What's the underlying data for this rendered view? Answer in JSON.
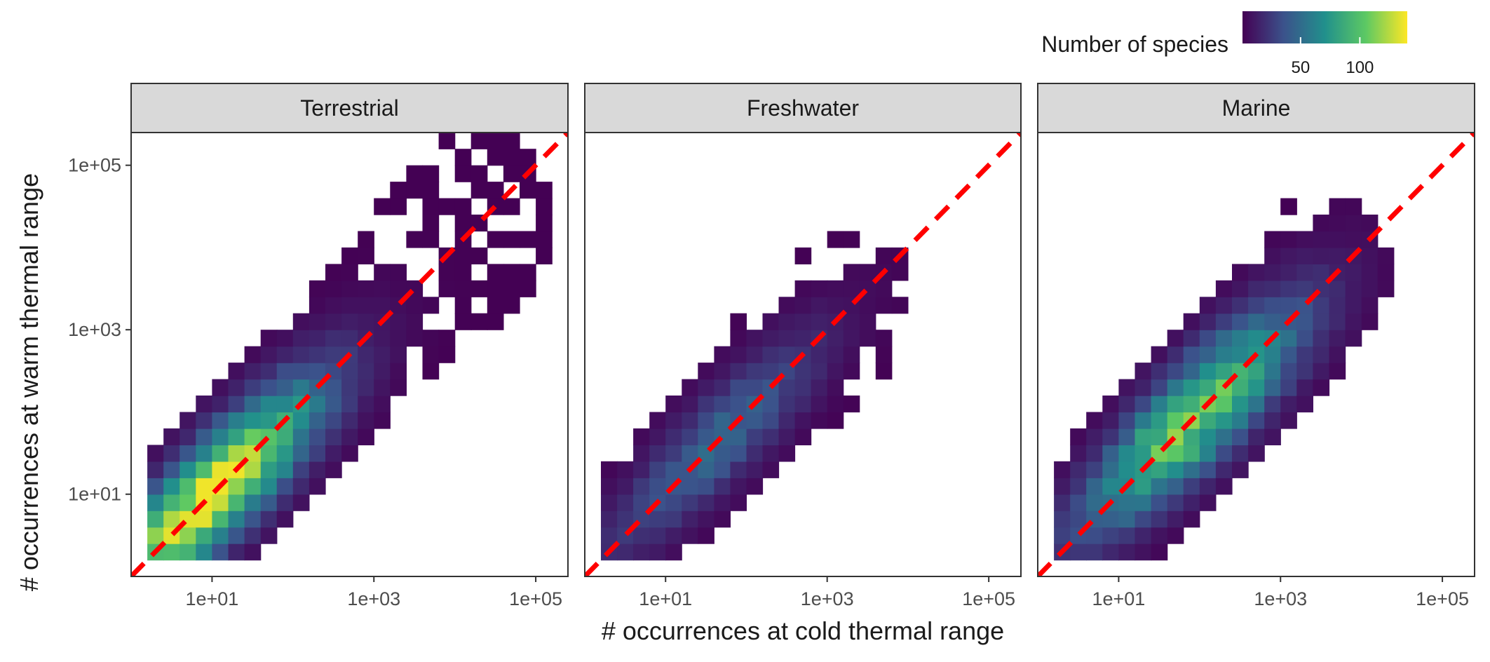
{
  "chart_data": {
    "type": "heatmap",
    "xlabel": "# occurrences at cold thermal range",
    "ylabel": "# occurrences at warm thermal range",
    "x_scale": "log10",
    "y_scale": "log10",
    "xlim": [
      1,
      250000
    ],
    "ylim": [
      1,
      250000
    ],
    "x_ticks": [
      "1e+01",
      "1e+03",
      "1e+05"
    ],
    "y_ticks": [
      "1e+01",
      "1e+03",
      "1e+05"
    ],
    "reference_line": {
      "slope": 1,
      "intercept": 0,
      "color": "#ff0000",
      "style": "dashed"
    },
    "legend": {
      "title": "Number of species",
      "ticks": [
        "50",
        "100"
      ],
      "range": [
        1,
        140
      ],
      "palette": [
        "#440154",
        "#3b528b",
        "#21908c",
        "#5dc963",
        "#fde725"
      ],
      "placement": "top-right"
    },
    "panels": [
      {
        "name": "Terrestrial"
      },
      {
        "name": "Freshwater"
      },
      {
        "name": "Marine"
      }
    ],
    "strip_color": "#d9d9d9"
  }
}
